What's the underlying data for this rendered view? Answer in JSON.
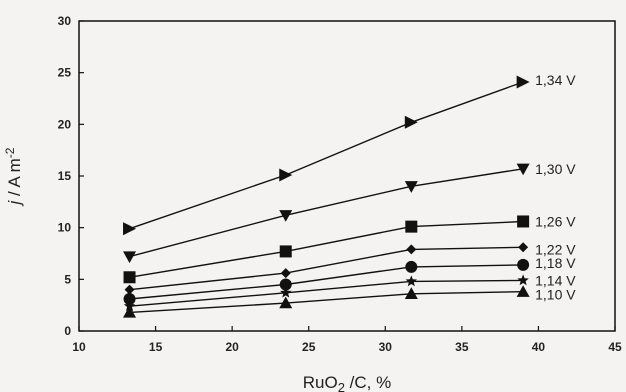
{
  "chart_data": {
    "type": "line",
    "title": "",
    "x": [
      13.3,
      23.5,
      31.7,
      39
    ],
    "xlabel": "RuO2 /C, %",
    "ylabel": "j / A m-2",
    "xlim": [
      10,
      45
    ],
    "ylim": [
      0,
      30
    ],
    "x_ticks": [
      10,
      15,
      20,
      25,
      30,
      35,
      40,
      45
    ],
    "y_ticks": [
      0,
      5,
      10,
      15,
      20,
      25,
      30
    ],
    "grid": false,
    "legend": "inline-right",
    "series": [
      {
        "name": "1,34 V",
        "marker": "triangle-right",
        "values": [
          9.9,
          15.1,
          20.2,
          24.1
        ]
      },
      {
        "name": "1,30 V",
        "marker": "triangle-down",
        "values": [
          7.2,
          11.2,
          14.0,
          15.7
        ]
      },
      {
        "name": "1,26 V",
        "marker": "square",
        "values": [
          5.2,
          7.7,
          10.1,
          10.6
        ]
      },
      {
        "name": "1,22 V",
        "marker": "diamond",
        "values": [
          4.0,
          5.6,
          7.9,
          8.1
        ]
      },
      {
        "name": "1,18 V",
        "marker": "circle",
        "values": [
          3.1,
          4.5,
          6.2,
          6.4
        ]
      },
      {
        "name": "1,14 V",
        "marker": "star",
        "values": [
          2.4,
          3.7,
          4.8,
          4.9
        ]
      },
      {
        "name": "1,10 V",
        "marker": "triangle-up",
        "values": [
          1.8,
          2.7,
          3.6,
          3.8
        ]
      }
    ]
  }
}
